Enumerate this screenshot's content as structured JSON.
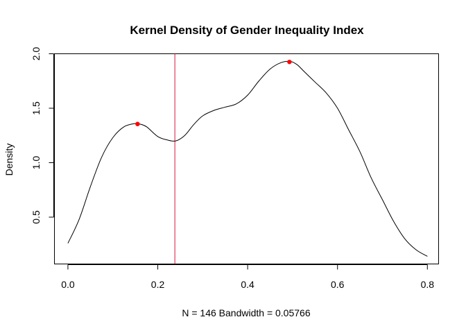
{
  "chart_data": {
    "type": "line",
    "title": "Kernel Density of Gender Inequality Index",
    "xlabel": "N = 146   Bandwidth = 0.05766",
    "ylabel": "Density",
    "xlim": [
      -0.03,
      0.825
    ],
    "ylim": [
      0.07,
      2.0
    ],
    "x_ticks": [
      0.0,
      0.2,
      0.4,
      0.6,
      0.8
    ],
    "x_tick_labels": [
      "0.0",
      "0.2",
      "0.4",
      "0.6",
      "0.8"
    ],
    "y_ticks": [
      0.5,
      1.0,
      1.5,
      2.0
    ],
    "y_tick_labels": [
      "0.5",
      "1.0",
      "1.5",
      "2.0"
    ],
    "grid": false,
    "series": [
      {
        "color": "#000000",
        "x": [
          0.0,
          0.025,
          0.05,
          0.075,
          0.1,
          0.125,
          0.15,
          0.16,
          0.175,
          0.2,
          0.22,
          0.24,
          0.26,
          0.28,
          0.3,
          0.325,
          0.35,
          0.375,
          0.4,
          0.425,
          0.45,
          0.475,
          0.495,
          0.51,
          0.525,
          0.55,
          0.575,
          0.6,
          0.625,
          0.65,
          0.675,
          0.7,
          0.725,
          0.75,
          0.775,
          0.8
        ],
        "y": [
          0.26,
          0.48,
          0.78,
          1.05,
          1.23,
          1.33,
          1.36,
          1.355,
          1.33,
          1.24,
          1.21,
          1.2,
          1.25,
          1.35,
          1.43,
          1.48,
          1.51,
          1.54,
          1.62,
          1.75,
          1.86,
          1.92,
          1.93,
          1.9,
          1.84,
          1.74,
          1.64,
          1.5,
          1.3,
          1.1,
          0.86,
          0.66,
          0.46,
          0.3,
          0.2,
          0.14
        ]
      }
    ],
    "peaks": {
      "color": "#ff0000",
      "x": [
        0.155,
        0.493
      ],
      "y": [
        1.355,
        1.925
      ]
    },
    "vline": {
      "x": 0.238,
      "color": "#dc143c"
    }
  }
}
